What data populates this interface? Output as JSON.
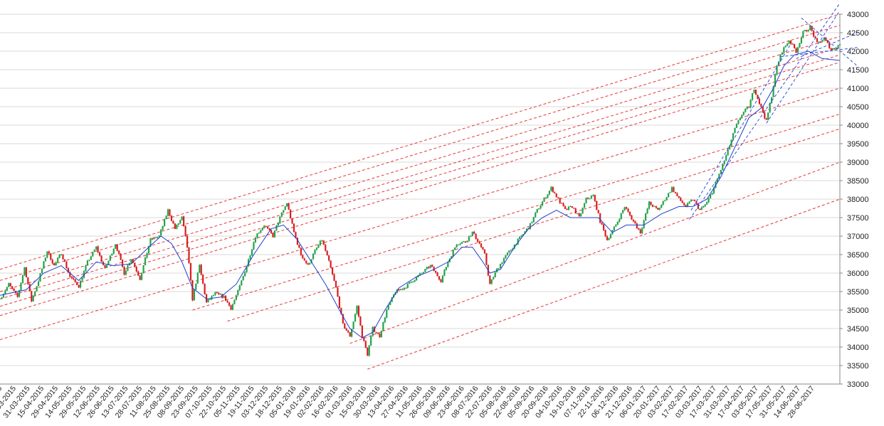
{
  "chart_data": {
    "type": "candlestick",
    "title": "",
    "xlabel": "",
    "ylabel": "",
    "ylim": [
      33000,
      43000
    ],
    "y_ticks": [
      33000,
      33500,
      34000,
      34500,
      35000,
      35500,
      36000,
      36500,
      37000,
      37500,
      38000,
      38500,
      39000,
      39500,
      40000,
      40500,
      41000,
      41500,
      42000,
      42500,
      43000
    ],
    "y_tick_labels": [
      "33000",
      "33500",
      "34000",
      "34500",
      "35000",
      "35500",
      "36000",
      "36500",
      "37000",
      "37500",
      "38000",
      "38500",
      "39000",
      "39500",
      "40000",
      "40500",
      "41000",
      "41500",
      "42000",
      "42500",
      "43000"
    ],
    "y_axis_side": "right",
    "grid": {
      "horizontal": true,
      "vertical": false
    },
    "x_tick_labels": [
      "03-03-2015",
      "17-03-2015",
      "31-03-2015",
      "15-04-2015",
      "29-04-2015",
      "14-05-2015",
      "29-05-2015",
      "12-06-2015",
      "26-06-2015",
      "13-07-2015",
      "28-07-2015",
      "11-08-2015",
      "25-08-2015",
      "08-09-2015",
      "23-09-2015",
      "07-10-2015",
      "22-10-2015",
      "05-11-2015",
      "19-11-2015",
      "03-12-2015",
      "18-12-2015",
      "05-01-2016",
      "19-01-2016",
      "02-02-2016",
      "16-02-2016",
      "01-03-2016",
      "15-03-2016",
      "30-03-2016",
      "13-04-2016",
      "27-04-2016",
      "11-05-2016",
      "26-05-2016",
      "09-06-2016",
      "23-06-2016",
      "08-07-2016",
      "22-07-2016",
      "05-08-2016",
      "22-08-2016",
      "05-09-2016",
      "20-09-2016",
      "04-10-2016",
      "19-10-2016",
      "07-11-2016",
      "22-11-2016",
      "06-12-2016",
      "21-12-2016",
      "06-01-2017",
      "20-01-2017",
      "03-02-2017",
      "17-02-2017",
      "03-03-2017",
      "17-03-2017",
      "31-03-2017",
      "17-04-2017",
      "03-05-2017",
      "17-05-2017",
      "31-05-2017",
      "14-06-2017",
      "28-06-2017"
    ],
    "close_path": [
      {
        "i": 0,
        "v": 35300
      },
      {
        "i": 5,
        "v": 35700
      },
      {
        "i": 10,
        "v": 35350
      },
      {
        "i": 14,
        "v": 36150
      },
      {
        "i": 18,
        "v": 35250
      },
      {
        "i": 22,
        "v": 35800
      },
      {
        "i": 27,
        "v": 36600
      },
      {
        "i": 31,
        "v": 36200
      },
      {
        "i": 35,
        "v": 36550
      },
      {
        "i": 40,
        "v": 35900
      },
      {
        "i": 45,
        "v": 35650
      },
      {
        "i": 50,
        "v": 36300
      },
      {
        "i": 55,
        "v": 36700
      },
      {
        "i": 60,
        "v": 36100
      },
      {
        "i": 66,
        "v": 36800
      },
      {
        "i": 71,
        "v": 36000
      },
      {
        "i": 75,
        "v": 36400
      },
      {
        "i": 80,
        "v": 35850
      },
      {
        "i": 86,
        "v": 36900
      },
      {
        "i": 91,
        "v": 37000
      },
      {
        "i": 96,
        "v": 37700
      },
      {
        "i": 100,
        "v": 37200
      },
      {
        "i": 104,
        "v": 37500
      },
      {
        "i": 107,
        "v": 36700
      },
      {
        "i": 110,
        "v": 35300
      },
      {
        "i": 114,
        "v": 36200
      },
      {
        "i": 118,
        "v": 35200
      },
      {
        "i": 123,
        "v": 35450
      },
      {
        "i": 128,
        "v": 35350
      },
      {
        "i": 132,
        "v": 35050
      },
      {
        "i": 136,
        "v": 35500
      },
      {
        "i": 141,
        "v": 36200
      },
      {
        "i": 146,
        "v": 37000
      },
      {
        "i": 151,
        "v": 37300
      },
      {
        "i": 156,
        "v": 37000
      },
      {
        "i": 160,
        "v": 37500
      },
      {
        "i": 164,
        "v": 37900
      },
      {
        "i": 168,
        "v": 37100
      },
      {
        "i": 172,
        "v": 36500
      },
      {
        "i": 176,
        "v": 36200
      },
      {
        "i": 180,
        "v": 36600
      },
      {
        "i": 184,
        "v": 36900
      },
      {
        "i": 188,
        "v": 36300
      },
      {
        "i": 192,
        "v": 35600
      },
      {
        "i": 196,
        "v": 34600
      },
      {
        "i": 200,
        "v": 34300
      },
      {
        "i": 204,
        "v": 35100
      },
      {
        "i": 207,
        "v": 34300
      },
      {
        "i": 210,
        "v": 33800
      },
      {
        "i": 213,
        "v": 34500
      },
      {
        "i": 217,
        "v": 34300
      },
      {
        "i": 221,
        "v": 35000
      },
      {
        "i": 226,
        "v": 35500
      },
      {
        "i": 231,
        "v": 35600
      },
      {
        "i": 236,
        "v": 35800
      },
      {
        "i": 241,
        "v": 36000
      },
      {
        "i": 246,
        "v": 36200
      },
      {
        "i": 252,
        "v": 35800
      },
      {
        "i": 256,
        "v": 36300
      },
      {
        "i": 261,
        "v": 36800
      },
      {
        "i": 266,
        "v": 36850
      },
      {
        "i": 270,
        "v": 37100
      },
      {
        "i": 274,
        "v": 36800
      },
      {
        "i": 277,
        "v": 36500
      },
      {
        "i": 280,
        "v": 35700
      },
      {
        "i": 284,
        "v": 36100
      },
      {
        "i": 288,
        "v": 36400
      },
      {
        "i": 293,
        "v": 36700
      },
      {
        "i": 298,
        "v": 37000
      },
      {
        "i": 303,
        "v": 37300
      },
      {
        "i": 307,
        "v": 37700
      },
      {
        "i": 311,
        "v": 38000
      },
      {
        "i": 315,
        "v": 38300
      },
      {
        "i": 319,
        "v": 38000
      },
      {
        "i": 323,
        "v": 37700
      },
      {
        "i": 327,
        "v": 37800
      },
      {
        "i": 331,
        "v": 37500
      },
      {
        "i": 335,
        "v": 38000
      },
      {
        "i": 339,
        "v": 38100
      },
      {
        "i": 343,
        "v": 37400
      },
      {
        "i": 347,
        "v": 36900
      },
      {
        "i": 352,
        "v": 37300
      },
      {
        "i": 357,
        "v": 37800
      },
      {
        "i": 362,
        "v": 37400
      },
      {
        "i": 366,
        "v": 37100
      },
      {
        "i": 371,
        "v": 37900
      },
      {
        "i": 376,
        "v": 37700
      },
      {
        "i": 380,
        "v": 38000
      },
      {
        "i": 384,
        "v": 38300
      },
      {
        "i": 388,
        "v": 38000
      },
      {
        "i": 392,
        "v": 37800
      },
      {
        "i": 396,
        "v": 38000
      },
      {
        "i": 400,
        "v": 37700
      },
      {
        "i": 404,
        "v": 37900
      },
      {
        "i": 408,
        "v": 38300
      },
      {
        "i": 412,
        "v": 38800
      },
      {
        "i": 416,
        "v": 39300
      },
      {
        "i": 420,
        "v": 39900
      },
      {
        "i": 424,
        "v": 40300
      },
      {
        "i": 428,
        "v": 40500
      },
      {
        "i": 431,
        "v": 41000
      },
      {
        "i": 434,
        "v": 40600
      },
      {
        "i": 438,
        "v": 40100
      },
      {
        "i": 441,
        "v": 40800
      },
      {
        "i": 444,
        "v": 41600
      },
      {
        "i": 447,
        "v": 42000
      },
      {
        "i": 451,
        "v": 42300
      },
      {
        "i": 455,
        "v": 42000
      },
      {
        "i": 459,
        "v": 42500
      },
      {
        "i": 463,
        "v": 42650
      },
      {
        "i": 467,
        "v": 42200
      },
      {
        "i": 471,
        "v": 42350
      },
      {
        "i": 475,
        "v": 42050
      },
      {
        "i": 478,
        "v": 42100
      },
      {
        "i": 480,
        "v": 42200
      }
    ],
    "moving_average_path": [
      {
        "i": 0,
        "v": 35400
      },
      {
        "i": 15,
        "v": 35550
      },
      {
        "i": 25,
        "v": 36000
      },
      {
        "i": 35,
        "v": 36200
      },
      {
        "i": 45,
        "v": 35800
      },
      {
        "i": 55,
        "v": 36300
      },
      {
        "i": 65,
        "v": 36200
      },
      {
        "i": 75,
        "v": 36250
      },
      {
        "i": 85,
        "v": 36700
      },
      {
        "i": 92,
        "v": 37000
      },
      {
        "i": 98,
        "v": 36800
      },
      {
        "i": 104,
        "v": 36300
      },
      {
        "i": 110,
        "v": 35600
      },
      {
        "i": 118,
        "v": 35300
      },
      {
        "i": 126,
        "v": 35350
      },
      {
        "i": 135,
        "v": 35700
      },
      {
        "i": 145,
        "v": 36500
      },
      {
        "i": 155,
        "v": 37200
      },
      {
        "i": 162,
        "v": 37300
      },
      {
        "i": 170,
        "v": 36900
      },
      {
        "i": 178,
        "v": 36300
      },
      {
        "i": 186,
        "v": 35700
      },
      {
        "i": 194,
        "v": 35000
      },
      {
        "i": 200,
        "v": 34500
      },
      {
        "i": 207,
        "v": 34250
      },
      {
        "i": 213,
        "v": 34400
      },
      {
        "i": 220,
        "v": 35000
      },
      {
        "i": 228,
        "v": 35600
      },
      {
        "i": 238,
        "v": 35900
      },
      {
        "i": 248,
        "v": 36100
      },
      {
        "i": 256,
        "v": 36300
      },
      {
        "i": 264,
        "v": 36700
      },
      {
        "i": 270,
        "v": 36700
      },
      {
        "i": 276,
        "v": 36300
      },
      {
        "i": 280,
        "v": 36000
      },
      {
        "i": 286,
        "v": 36100
      },
      {
        "i": 294,
        "v": 36700
      },
      {
        "i": 302,
        "v": 37200
      },
      {
        "i": 310,
        "v": 37500
      },
      {
        "i": 318,
        "v": 37700
      },
      {
        "i": 326,
        "v": 37500
      },
      {
        "i": 334,
        "v": 37500
      },
      {
        "i": 342,
        "v": 37500
      },
      {
        "i": 350,
        "v": 37100
      },
      {
        "i": 358,
        "v": 37300
      },
      {
        "i": 368,
        "v": 37300
      },
      {
        "i": 378,
        "v": 37600
      },
      {
        "i": 388,
        "v": 37800
      },
      {
        "i": 396,
        "v": 37800
      },
      {
        "i": 404,
        "v": 38000
      },
      {
        "i": 412,
        "v": 38600
      },
      {
        "i": 420,
        "v": 39400
      },
      {
        "i": 428,
        "v": 40200
      },
      {
        "i": 436,
        "v": 40500
      },
      {
        "i": 442,
        "v": 41000
      },
      {
        "i": 448,
        "v": 41600
      },
      {
        "i": 454,
        "v": 41900
      },
      {
        "i": 462,
        "v": 42000
      },
      {
        "i": 470,
        "v": 41800
      },
      {
        "i": 480,
        "v": 41750
      }
    ],
    "red_trendlines": [
      {
        "i0": 0,
        "v0": 36100,
        "i1": 480,
        "v1": 43000
      },
      {
        "i0": 0,
        "v0": 35800,
        "i1": 480,
        "v1": 42700
      },
      {
        "i0": 0,
        "v0": 35500,
        "i1": 480,
        "v1": 42400
      },
      {
        "i0": 0,
        "v0": 35300,
        "i1": 480,
        "v1": 42100
      },
      {
        "i0": 0,
        "v0": 35100,
        "i1": 480,
        "v1": 41900
      },
      {
        "i0": 0,
        "v0": 34850,
        "i1": 480,
        "v1": 41700
      },
      {
        "i0": 0,
        "v0": 34200,
        "i1": 480,
        "v1": 41000
      },
      {
        "i0": 110,
        "v0": 35000,
        "i1": 480,
        "v1": 40300
      },
      {
        "i0": 130,
        "v0": 34700,
        "i1": 480,
        "v1": 39900
      },
      {
        "i0": 200,
        "v0": 34100,
        "i1": 480,
        "v1": 39000
      },
      {
        "i0": 210,
        "v0": 33400,
        "i1": 480,
        "v1": 38000
      }
    ],
    "blue_trendlines": [
      {
        "i0": 395,
        "v0": 37700,
        "i1": 452,
        "v1": 42200
      },
      {
        "i0": 394,
        "v0": 37450,
        "i1": 480,
        "v1": 43300
      },
      {
        "i0": 438,
        "v0": 40050,
        "i1": 480,
        "v1": 43100
      },
      {
        "i0": 446,
        "v0": 41850,
        "i1": 490,
        "v1": 42100
      },
      {
        "i0": 455,
        "v0": 41800,
        "i1": 490,
        "v1": 42500
      },
      {
        "i0": 458,
        "v0": 42900,
        "i1": 490,
        "v1": 41600
      }
    ]
  }
}
